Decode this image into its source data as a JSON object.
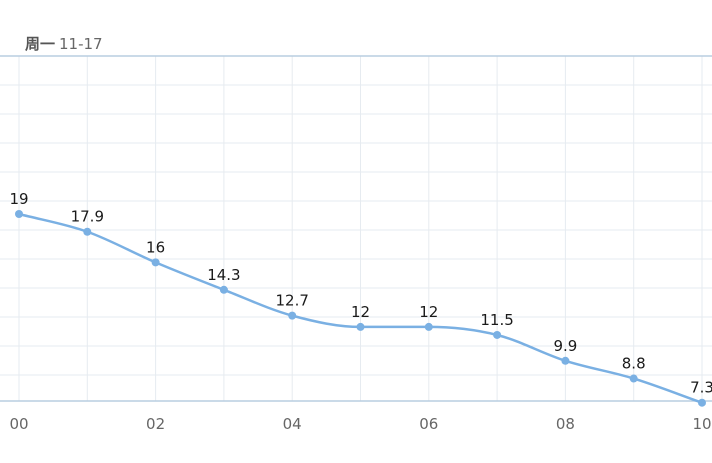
{
  "header": {
    "day_name": "周一",
    "date": "11-17"
  },
  "colors": {
    "line": "#7ab0e3",
    "grid": "#e6ebf0",
    "axis": "#b9cde0",
    "label": "#1a1a1a",
    "tick": "#666666"
  },
  "chart_data": {
    "type": "line",
    "x": [
      0,
      1,
      2,
      3,
      4,
      5,
      6,
      7,
      8,
      9,
      10
    ],
    "x_tick_labels": [
      "00",
      "02",
      "04",
      "06",
      "08",
      "10"
    ],
    "x_tick_values": [
      0,
      2,
      4,
      6,
      8,
      10
    ],
    "series": [
      {
        "values": [
          19,
          17.9,
          16,
          14.3,
          12.7,
          12,
          12,
          11.5,
          9.9,
          8.8,
          7.3
        ],
        "labels": [
          "19",
          "17.9",
          "16",
          "14.3",
          "12.7",
          "12",
          "12",
          "11.5",
          "9.9",
          "8.8",
          "7.3"
        ]
      }
    ],
    "smooth": true,
    "grid": true
  }
}
